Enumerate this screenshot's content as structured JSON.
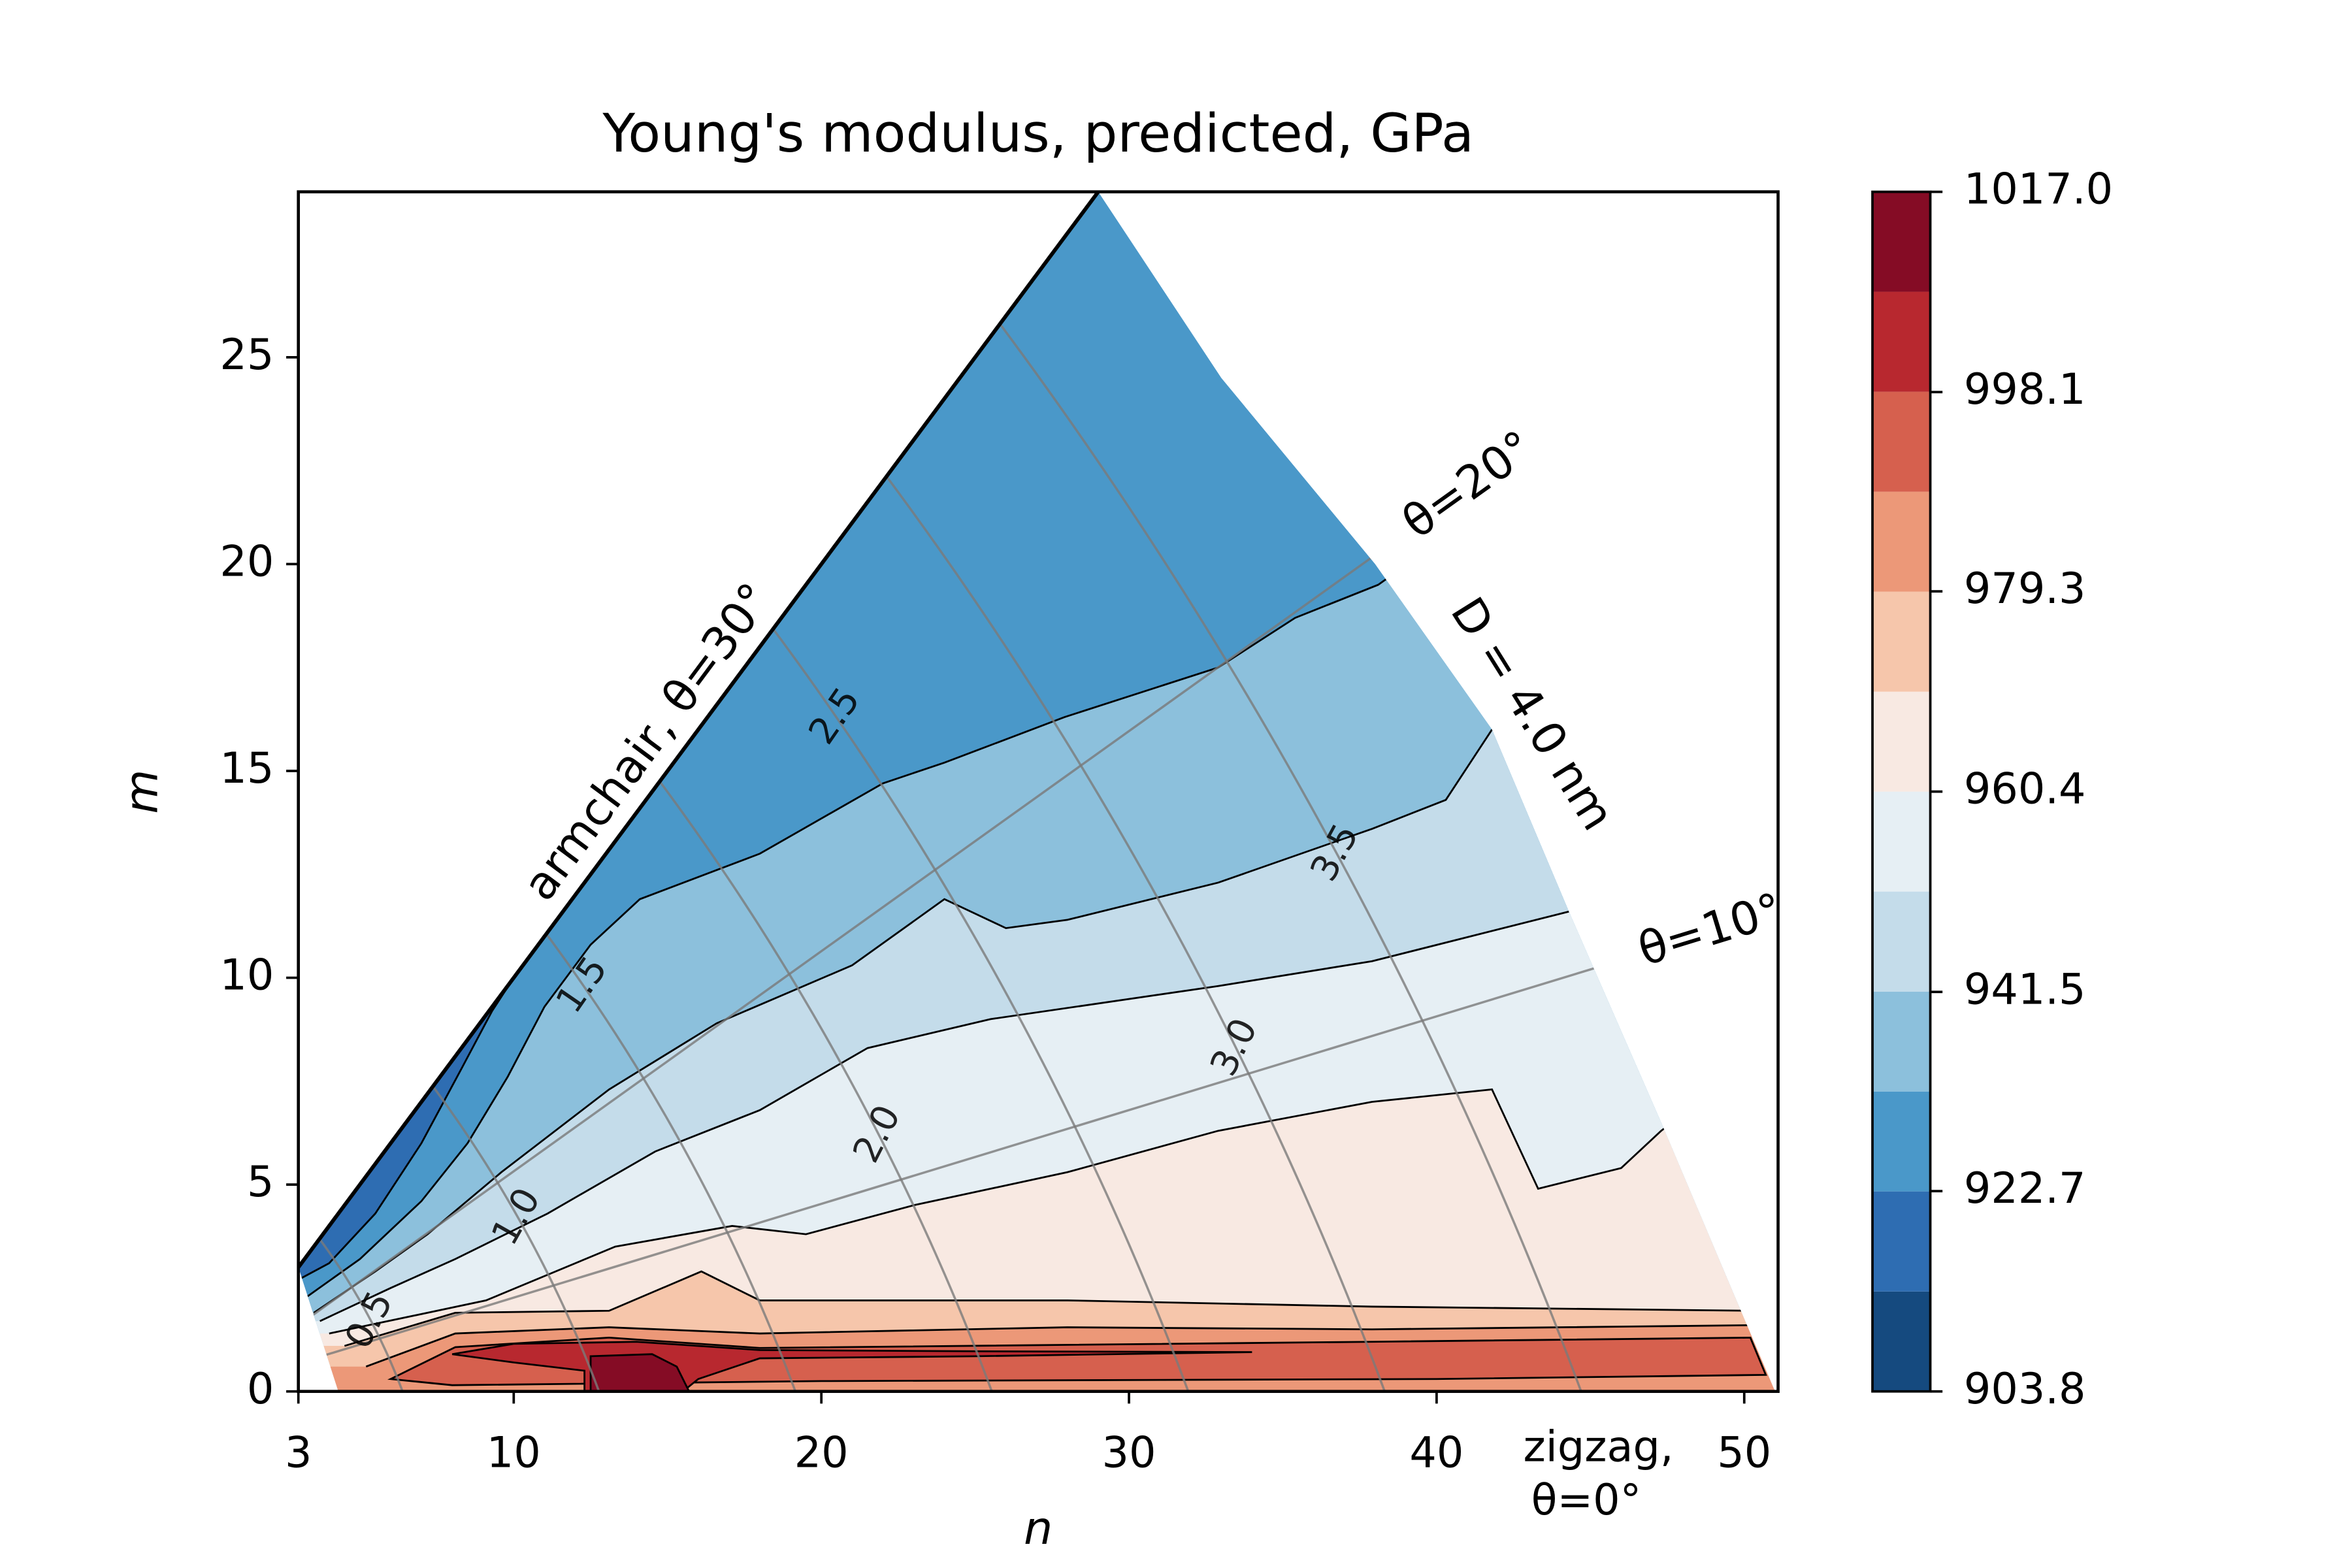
{
  "chart_data": {
    "type": "contour",
    "title": "Young's modulus, predicted, GPa",
    "xlabel": "n",
    "ylabel": "m",
    "xlim": [
      3,
      51.1
    ],
    "ylim": [
      0,
      29
    ],
    "xticks": [
      3,
      10,
      20,
      30,
      40,
      50
    ],
    "yticks": [
      0,
      5,
      10,
      15,
      20,
      25
    ],
    "levels": [
      903.8,
      913.23,
      922.67,
      932.1,
      941.53,
      950.97,
      960.4,
      969.83,
      979.27,
      988.7,
      998.13,
      1007.57,
      1017.0
    ],
    "colors": [
      "#154a7f",
      "#2e6db2",
      "#4a98c9",
      "#8cc0dc",
      "#c4dcea",
      "#e6eff4",
      "#f8e9e2",
      "#f6c6ab",
      "#ec9878",
      "#d6604e",
      "#b8282f",
      "#850c25"
    ],
    "colorbar_ticks": [
      903.8,
      922.7,
      941.5,
      960.4,
      979.3,
      998.1,
      {
        "value": 1017.0,
        "label": "1017.0"
      }
    ],
    "domain": [
      [
        3,
        3
      ],
      [
        29,
        29
      ],
      [
        33,
        24.5
      ],
      [
        38,
        20
      ],
      [
        41.8,
        16
      ],
      [
        44.3,
        11.6
      ],
      [
        47.3,
        6.5
      ],
      [
        51,
        0
      ],
      [
        4.3,
        0
      ]
    ],
    "domain_band": 1,
    "regions": [
      {
        "band": 2,
        "boundary": [
          [
            3,
            2.7
          ],
          [
            4,
            3.1
          ],
          [
            5.5,
            4.3
          ],
          [
            7,
            6
          ],
          [
            8.3,
            7.8
          ],
          [
            9.3,
            9.2
          ],
          [
            10,
            10
          ],
          [
            29,
            29
          ]
        ]
      },
      {
        "band": 3,
        "boundary": [
          [
            3.3,
            2.3
          ],
          [
            5,
            3.2
          ],
          [
            7,
            4.6
          ],
          [
            8.5,
            6
          ],
          [
            9.8,
            7.6
          ],
          [
            11,
            9.3
          ],
          [
            12.5,
            10.8
          ],
          [
            14.1,
            11.9
          ],
          [
            18,
            13
          ],
          [
            22,
            14.7
          ],
          [
            24,
            15.2
          ],
          [
            27.9,
            16.3
          ],
          [
            32.9,
            17.5
          ],
          [
            35.4,
            18.7
          ],
          [
            38.1,
            19.5
          ],
          [
            40,
            20.5
          ]
        ]
      },
      {
        "band": 4,
        "boundary": [
          [
            3.5,
            1.9
          ],
          [
            5.5,
            2.9
          ],
          [
            7.2,
            3.8
          ],
          [
            9.6,
            5.3
          ],
          [
            13.1,
            7.3
          ],
          [
            16.6,
            8.9
          ],
          [
            21,
            10.3
          ],
          [
            24,
            11.9
          ],
          [
            26,
            11.2
          ],
          [
            28,
            11.4
          ],
          [
            32.9,
            12.3
          ],
          [
            37.9,
            13.6
          ],
          [
            40.3,
            14.3
          ],
          [
            41.8,
            16
          ]
        ]
      },
      {
        "band": 5,
        "boundary": [
          [
            3.7,
            1.7
          ],
          [
            6,
            2.5
          ],
          [
            8.1,
            3.2
          ],
          [
            11.1,
            4.3
          ],
          [
            14.6,
            5.8
          ],
          [
            18,
            6.8
          ],
          [
            21.5,
            8.3
          ],
          [
            25.5,
            9
          ],
          [
            32.9,
            9.8
          ],
          [
            37.9,
            10.4
          ],
          [
            44.3,
            11.6
          ]
        ]
      },
      {
        "band": 6,
        "boundary": [
          [
            4,
            1.4
          ],
          [
            9.1,
            2.2
          ],
          [
            13.3,
            3.5
          ],
          [
            17.1,
            4
          ],
          [
            19.5,
            3.8
          ],
          [
            23,
            4.5
          ],
          [
            28,
            5.3
          ],
          [
            32.9,
            6.3
          ],
          [
            37.9,
            7
          ],
          [
            41.8,
            7.3
          ],
          [
            43.3,
            4.9
          ],
          [
            46,
            5.4
          ],
          [
            47.3,
            6.3
          ],
          [
            48.7,
            7.1
          ]
        ]
      },
      {
        "band": 7,
        "boundary": [
          [
            4.5,
            1.1
          ],
          [
            8.1,
            1.9
          ],
          [
            13.1,
            1.95
          ],
          [
            16.1,
            2.9
          ],
          [
            18,
            2.2
          ],
          [
            28,
            2.2
          ],
          [
            37.9,
            2.05
          ],
          [
            50.2,
            1.95
          ],
          [
            51.1,
            1.9
          ]
        ]
      },
      {
        "band": 8,
        "boundary": [
          [
            5.2,
            0.6
          ],
          [
            8.1,
            1.4
          ],
          [
            13.1,
            1.55
          ],
          [
            18,
            1.4
          ],
          [
            28,
            1.55
          ],
          [
            37.9,
            1.5
          ],
          [
            50.2,
            1.6
          ],
          [
            51.1,
            1.6
          ]
        ]
      },
      {
        "band": 9,
        "outline": [
          [
            6,
            0.3
          ],
          [
            8.1,
            1.07
          ],
          [
            13.1,
            1.3
          ],
          [
            18,
            1.05
          ],
          [
            37.9,
            1.2
          ],
          [
            50.2,
            1.3
          ],
          [
            50.7,
            0.4
          ],
          [
            40,
            0.3
          ],
          [
            20,
            0.25
          ],
          [
            8,
            0.15
          ]
        ]
      },
      {
        "band": 10,
        "outline": [
          [
            8,
            0.9
          ],
          [
            10,
            1.15
          ],
          [
            14,
            1.2
          ],
          [
            18,
            1
          ],
          [
            25,
            0.97
          ],
          [
            34,
            0.95
          ],
          [
            25,
            0.85
          ],
          [
            18,
            0.8
          ],
          [
            16,
            0.3
          ],
          [
            15.5,
            0
          ],
          [
            12.3,
            0
          ],
          [
            12.3,
            0.5
          ],
          [
            10,
            0.7
          ]
        ]
      },
      {
        "band": 11,
        "outline": [
          [
            12.5,
            0
          ],
          [
            12.5,
            0.85
          ],
          [
            14.5,
            0.9
          ],
          [
            15.3,
            0.6
          ],
          [
            15.7,
            0
          ]
        ]
      }
    ],
    "diameter_lines": [
      0.5,
      {
        "value": 1.0,
        "label": "1.0"
      },
      1.5,
      {
        "value": 2.0,
        "label": "2.0"
      },
      2.5,
      {
        "value": 3.0,
        "label": "3.0"
      },
      3.5
    ],
    "theta_lines": [
      {
        "value": 10,
        "label": "θ=10°"
      },
      {
        "value": 20,
        "label": "θ=20°"
      }
    ],
    "guide_color": "#7a7a7a",
    "annotations": {
      "armchair": "armchair, θ=30°",
      "diameter": "D = 4.0 nm",
      "zigzag": [
        "zigzag,",
        "θ=0°"
      ]
    }
  }
}
